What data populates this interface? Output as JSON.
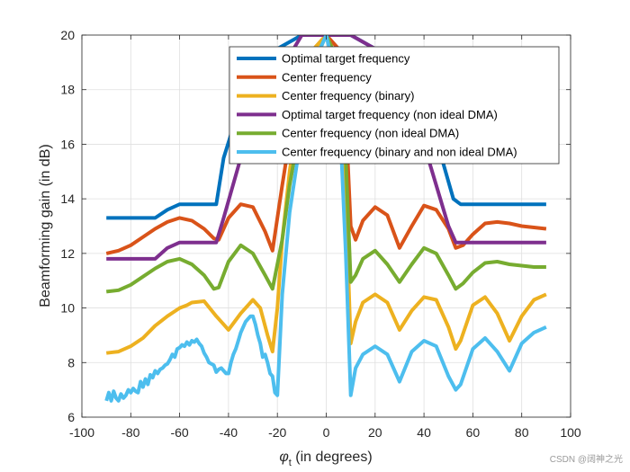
{
  "chart_data": {
    "type": "line",
    "title": "",
    "xlabel": "φ",
    "xlabel_sub": "t",
    "xlabel_suffix": " (in degrees)",
    "ylabel": "Beamforming gain (in dB)",
    "xlim": [
      -100,
      100
    ],
    "ylim": [
      6,
      20
    ],
    "xticks": [
      -100,
      -80,
      -60,
      -40,
      -20,
      0,
      20,
      40,
      60,
      80,
      100
    ],
    "yticks": [
      6,
      8,
      10,
      12,
      14,
      16,
      18,
      20
    ],
    "grid": true,
    "legend_position": "top-right",
    "series": [
      {
        "name": "Optimal target frequency",
        "color": "#0072BD",
        "x": [
          -90,
          -70,
          -65,
          -60,
          -50,
          -45,
          -42,
          -35,
          -30,
          -20,
          -10,
          0,
          10,
          20,
          35,
          45,
          52,
          55,
          60,
          70,
          90
        ],
        "y": [
          13.3,
          13.3,
          13.6,
          13.8,
          13.8,
          13.8,
          15.5,
          17.5,
          18.5,
          19.5,
          20,
          20,
          20,
          19.5,
          18.5,
          16.2,
          14.0,
          13.8,
          13.8,
          13.8,
          13.8
        ]
      },
      {
        "name": "Center frequency",
        "color": "#D95319",
        "x": [
          -90,
          -85,
          -80,
          -75,
          -70,
          -65,
          -60,
          -55,
          -50,
          -46,
          -44,
          -40,
          -35,
          -30,
          -25,
          -22,
          -18,
          -15,
          -10,
          -5,
          0,
          5,
          8,
          10,
          12,
          15,
          20,
          25,
          30,
          35,
          40,
          45,
          50,
          53,
          56,
          60,
          65,
          70,
          75,
          80,
          85,
          90
        ],
        "y": [
          12.0,
          12.1,
          12.3,
          12.6,
          12.9,
          13.15,
          13.3,
          13.2,
          12.9,
          12.55,
          12.5,
          13.3,
          13.8,
          13.7,
          12.8,
          12.1,
          14.5,
          16.2,
          18.5,
          19.5,
          20,
          19.5,
          17.0,
          13.0,
          12.5,
          13.2,
          13.7,
          13.4,
          12.2,
          13.0,
          13.75,
          13.6,
          12.9,
          12.2,
          12.3,
          12.7,
          13.1,
          13.15,
          13.1,
          13.0,
          12.95,
          12.9
        ]
      },
      {
        "name": "Center frequency (binary)",
        "color": "#EDB120",
        "x": [
          -90,
          -85,
          -80,
          -75,
          -70,
          -65,
          -60,
          -57,
          -55,
          -50,
          -45,
          -42,
          -40,
          -35,
          -30,
          -27,
          -24,
          -22,
          -20,
          -18,
          -15,
          -10,
          -5,
          0,
          5,
          8,
          10,
          12,
          15,
          20,
          25,
          30,
          35,
          40,
          45,
          50,
          53,
          55,
          60,
          65,
          70,
          75,
          80,
          85,
          90
        ],
        "y": [
          8.35,
          8.4,
          8.6,
          8.9,
          9.35,
          9.7,
          10.0,
          10.1,
          10.2,
          10.25,
          9.7,
          9.4,
          9.2,
          9.8,
          10.3,
          10.0,
          9.0,
          8.4,
          10.0,
          12.5,
          15.0,
          18.0,
          19.5,
          20,
          19.0,
          14.0,
          8.7,
          9.5,
          10.2,
          10.5,
          10.2,
          9.2,
          9.9,
          10.4,
          10.3,
          9.3,
          8.5,
          8.8,
          10.1,
          10.4,
          9.8,
          8.8,
          9.7,
          10.3,
          10.5
        ]
      },
      {
        "name": "Optimal target frequency (non ideal DMA)",
        "color": "#7E2F8E",
        "x": [
          -90,
          -70,
          -65,
          -60,
          -50,
          -45,
          -42,
          -35,
          -30,
          -20,
          -10,
          0,
          10,
          20,
          30,
          40,
          45,
          50,
          53,
          56,
          60,
          70,
          90
        ],
        "y": [
          11.8,
          11.8,
          12.2,
          12.4,
          12.4,
          12.4,
          13.3,
          15.5,
          17.0,
          18.5,
          20,
          20,
          20,
          19.5,
          18.0,
          16.0,
          14.5,
          13.0,
          12.4,
          12.4,
          12.4,
          12.4,
          12.4
        ]
      },
      {
        "name": "Center frequency (non ideal DMA)",
        "color": "#77AC30",
        "x": [
          -90,
          -85,
          -80,
          -75,
          -70,
          -65,
          -60,
          -55,
          -50,
          -46,
          -44,
          -40,
          -35,
          -30,
          -25,
          -22,
          -18,
          -15,
          -10,
          -5,
          0,
          5,
          8,
          10,
          12,
          15,
          20,
          25,
          30,
          35,
          40,
          45,
          50,
          53,
          56,
          60,
          65,
          70,
          75,
          80,
          85,
          90
        ],
        "y": [
          10.6,
          10.65,
          10.85,
          11.15,
          11.45,
          11.7,
          11.8,
          11.6,
          11.2,
          10.7,
          10.75,
          11.7,
          12.3,
          12.0,
          11.2,
          10.7,
          12.5,
          14.5,
          17.0,
          19.0,
          20,
          19.0,
          15.5,
          10.95,
          11.2,
          11.8,
          12.1,
          11.6,
          10.95,
          11.6,
          12.2,
          12.0,
          11.2,
          10.7,
          10.9,
          11.3,
          11.65,
          11.7,
          11.6,
          11.55,
          11.5,
          11.5
        ]
      },
      {
        "name": "Center frequency (binary and non ideal DMA)",
        "color": "#4DBEEE",
        "x": [
          -90,
          -89,
          -88,
          -87,
          -86,
          -85,
          -84,
          -83,
          -82,
          -81,
          -80,
          -79,
          -78,
          -77,
          -76,
          -75,
          -74,
          -73,
          -72,
          -71,
          -70,
          -69,
          -68,
          -67,
          -66,
          -65,
          -64,
          -63,
          -62,
          -61,
          -60,
          -59,
          -58,
          -57,
          -56,
          -55,
          -54,
          -53,
          -52,
          -51,
          -50,
          -49,
          -48,
          -47,
          -46,
          -45,
          -44,
          -43,
          -42,
          -41,
          -40,
          -39,
          -38,
          -37,
          -36,
          -35,
          -34,
          -33,
          -32,
          -31,
          -30,
          -29,
          -28,
          -27,
          -26,
          -25,
          -24,
          -23,
          -22,
          -21,
          -20,
          -18,
          -15,
          -10,
          -5,
          0,
          5,
          8,
          10,
          12,
          15,
          20,
          25,
          30,
          35,
          40,
          45,
          50,
          53,
          55,
          60,
          65,
          70,
          75,
          80,
          85,
          90
        ],
        "y": [
          6.6,
          6.9,
          6.6,
          6.95,
          6.7,
          6.6,
          6.85,
          6.7,
          6.8,
          7.0,
          6.9,
          7.05,
          6.95,
          6.9,
          7.3,
          7.1,
          7.4,
          7.2,
          7.55,
          7.45,
          7.7,
          7.6,
          7.75,
          7.8,
          7.9,
          7.95,
          8.1,
          8.3,
          8.2,
          8.5,
          8.55,
          8.65,
          8.6,
          8.75,
          8.65,
          8.8,
          8.75,
          8.85,
          8.7,
          8.6,
          8.35,
          8.2,
          8.0,
          7.95,
          7.9,
          7.65,
          7.75,
          7.8,
          7.7,
          7.6,
          7.6,
          8.0,
          8.3,
          8.5,
          8.8,
          9.1,
          9.3,
          9.5,
          9.6,
          9.7,
          9.7,
          9.4,
          9.0,
          8.7,
          8.2,
          8.3,
          8.0,
          7.6,
          7.5,
          6.9,
          6.8,
          10.5,
          13.5,
          16.5,
          19.0,
          20,
          18.0,
          12.0,
          6.8,
          7.8,
          8.3,
          8.6,
          8.3,
          7.3,
          8.4,
          8.8,
          8.6,
          7.5,
          7.0,
          7.2,
          8.5,
          8.9,
          8.4,
          7.7,
          8.7,
          9.1,
          9.3
        ]
      }
    ]
  },
  "watermark": "CSDN @阔神之光"
}
